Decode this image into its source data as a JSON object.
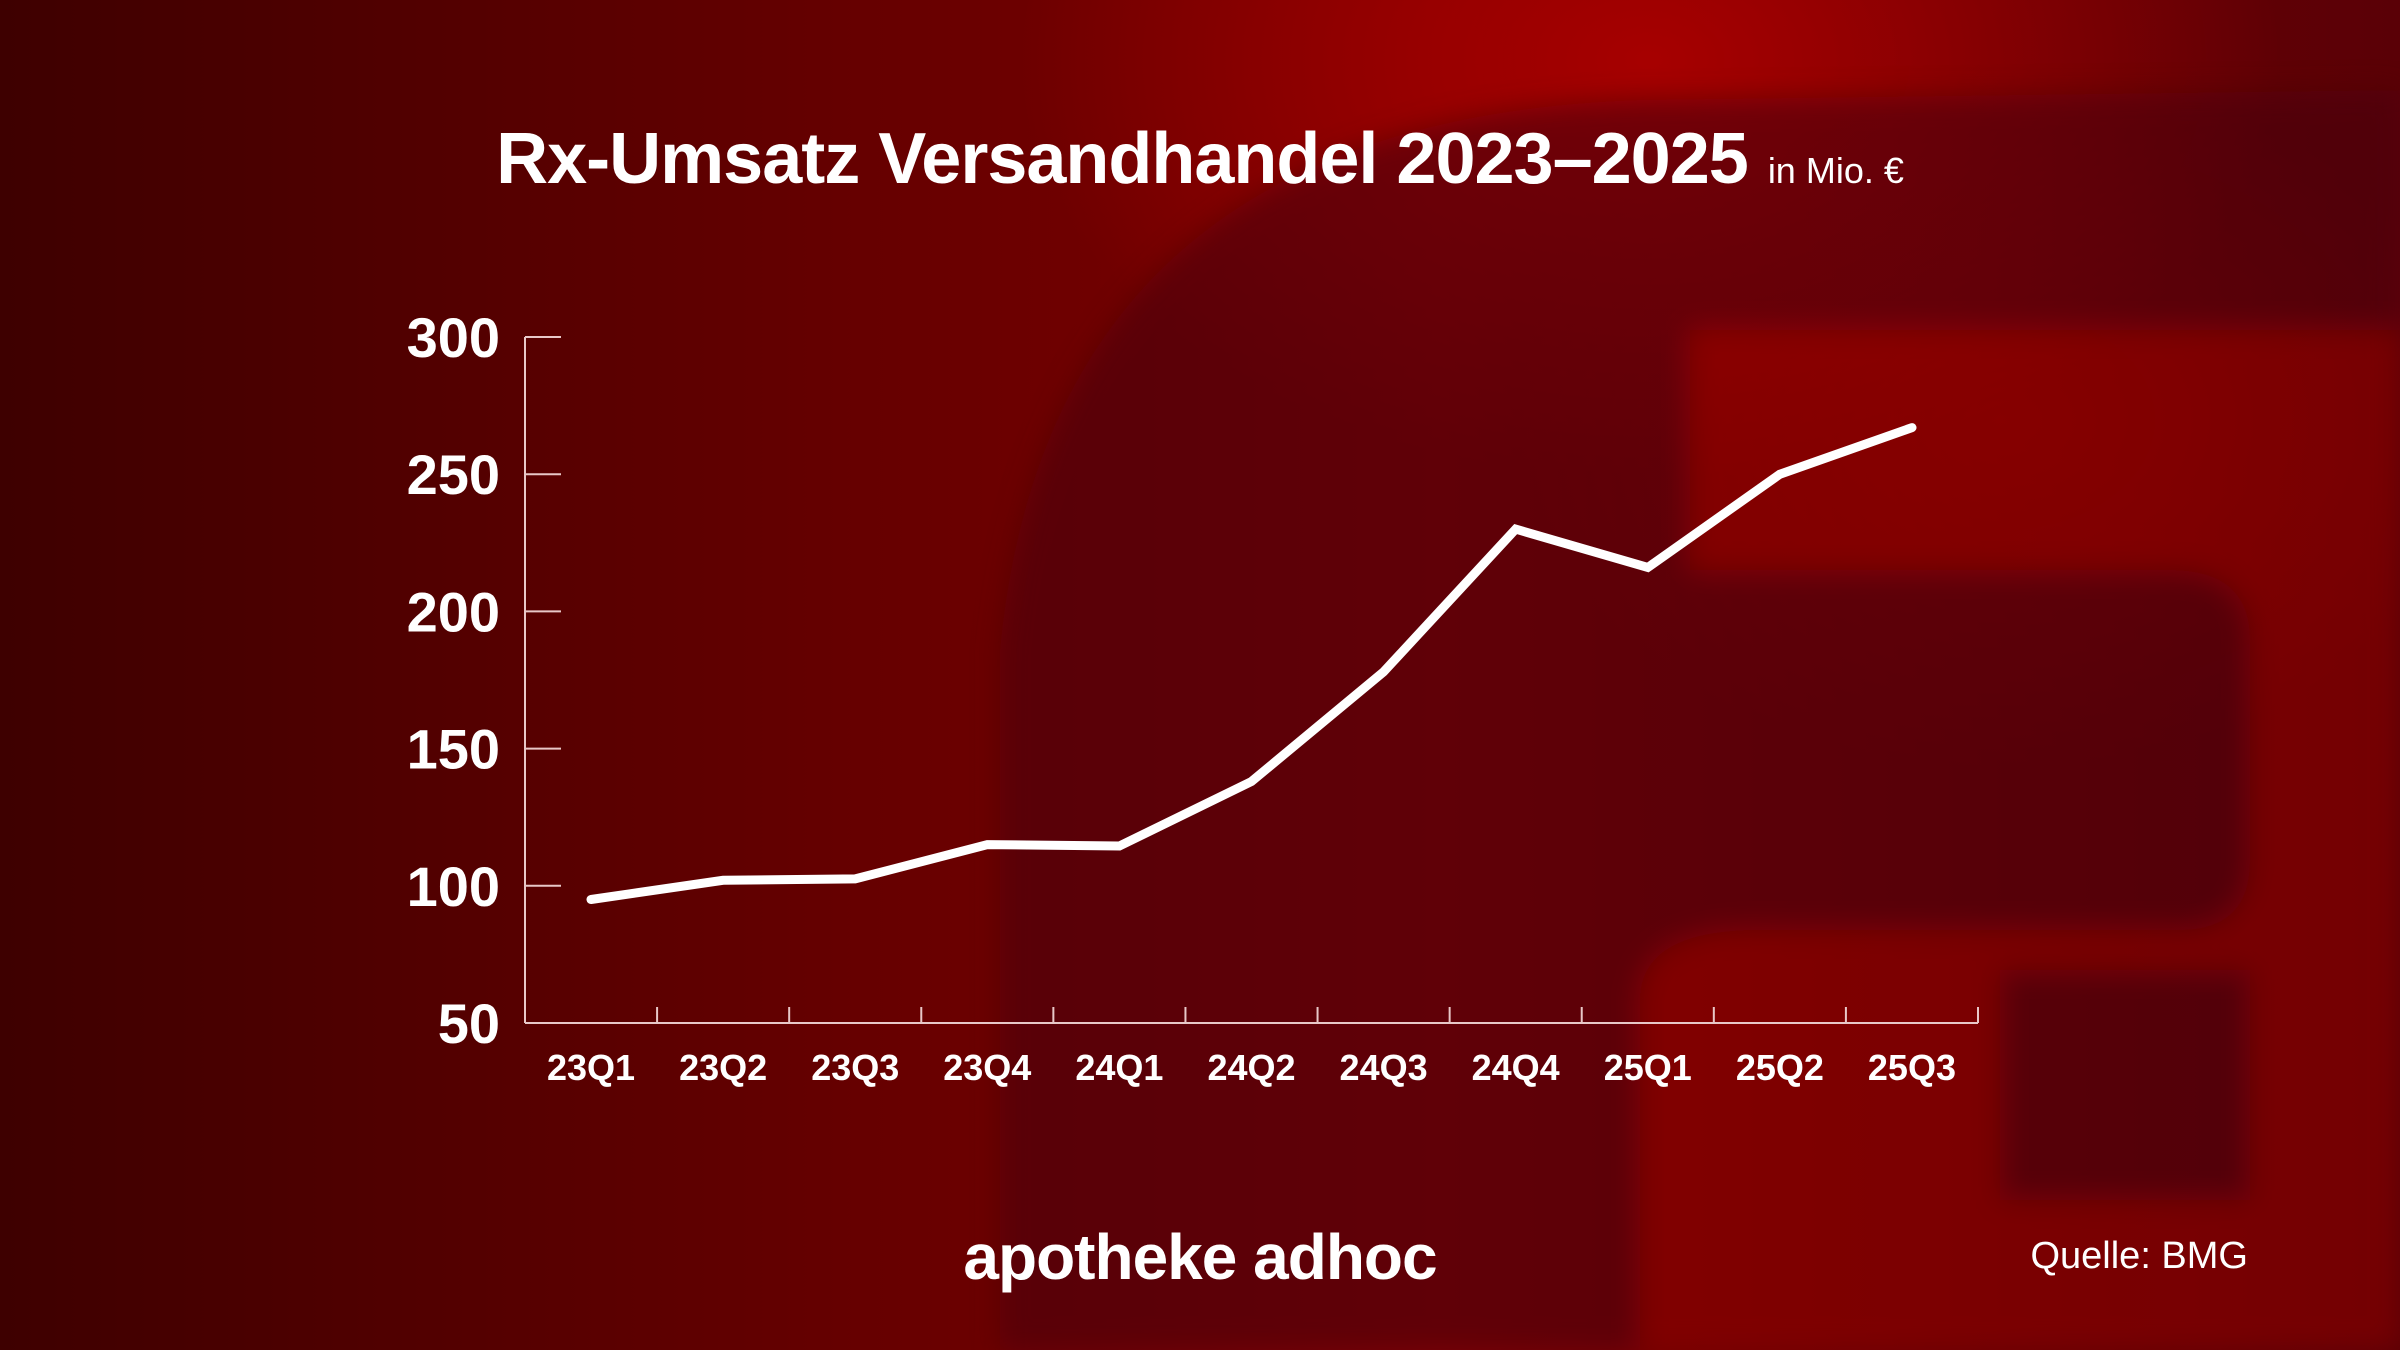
{
  "header": {
    "title": "Rx-Umsatz Versandhandel 2023–2025",
    "unit": "in Mio. €"
  },
  "footer": {
    "brand": "apotheke adhoc",
    "source": "Quelle: BMG"
  },
  "colors": {
    "line": "#ffffff",
    "axis": "#e8c8c8",
    "background": "#7a0000"
  },
  "chart_data": {
    "type": "line",
    "title": "Rx-Umsatz Versandhandel 2023–2025",
    "subtitle": "in Mio. €",
    "xlabel": "",
    "ylabel": "",
    "categories": [
      "23Q1",
      "23Q2",
      "23Q3",
      "23Q4",
      "24Q1",
      "24Q2",
      "24Q3",
      "24Q4",
      "25Q1",
      "25Q2",
      "25Q3"
    ],
    "series": [
      {
        "values": [
          95,
          102,
          102.5,
          115,
          114.5,
          138,
          178,
          230,
          216,
          250,
          267
        ]
      }
    ],
    "ylim": [
      50,
      300
    ],
    "yticks": [
      "300",
      "250",
      "200",
      "150",
      "100",
      "50"
    ],
    "grid": false,
    "legend": "none"
  }
}
